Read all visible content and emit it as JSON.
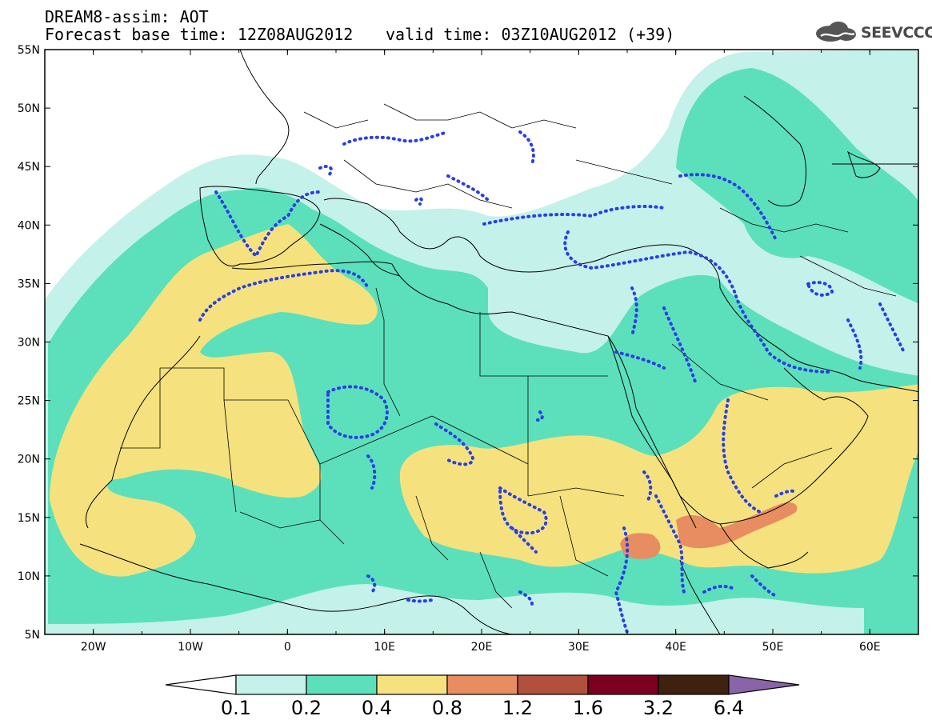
{
  "header": {
    "title": "DREAM8-assim: AOT",
    "base_time": "Forecast base time: 12Z08AUG2012",
    "valid_time": "valid time: 03Z10AUG2012 (+39)"
  },
  "logo": {
    "text": "SEEVCCC"
  },
  "map": {
    "lat_labels": [
      "55N",
      "50N",
      "45N",
      "40N",
      "35N",
      "30N",
      "25N",
      "20N",
      "15N",
      "10N",
      "5N"
    ],
    "lon_labels": [
      "20W",
      "10W",
      "0",
      "10E",
      "20E",
      "30E",
      "40E",
      "50E",
      "60E"
    ],
    "lat_range": [
      5,
      55
    ],
    "lon_range": [
      -25,
      65
    ]
  },
  "colorbar": {
    "labels": [
      "0.1",
      "0.2",
      "0.4",
      "0.8",
      "1.2",
      "1.6",
      "3.2",
      "6.4"
    ],
    "colors": [
      "#ffffff",
      "#c4f1e9",
      "#5ce0bb",
      "#f5e27e",
      "#e78d61",
      "#b1503c",
      "#7c0020",
      "#3f2110",
      "#8a64a8"
    ]
  },
  "colors": {
    "c01": "#c4f1e9",
    "c02": "#5ce0bb",
    "c04": "#f5e27e",
    "c08": "#e78d61",
    "dotted": "#2a3ee8",
    "land": "#000000"
  }
}
